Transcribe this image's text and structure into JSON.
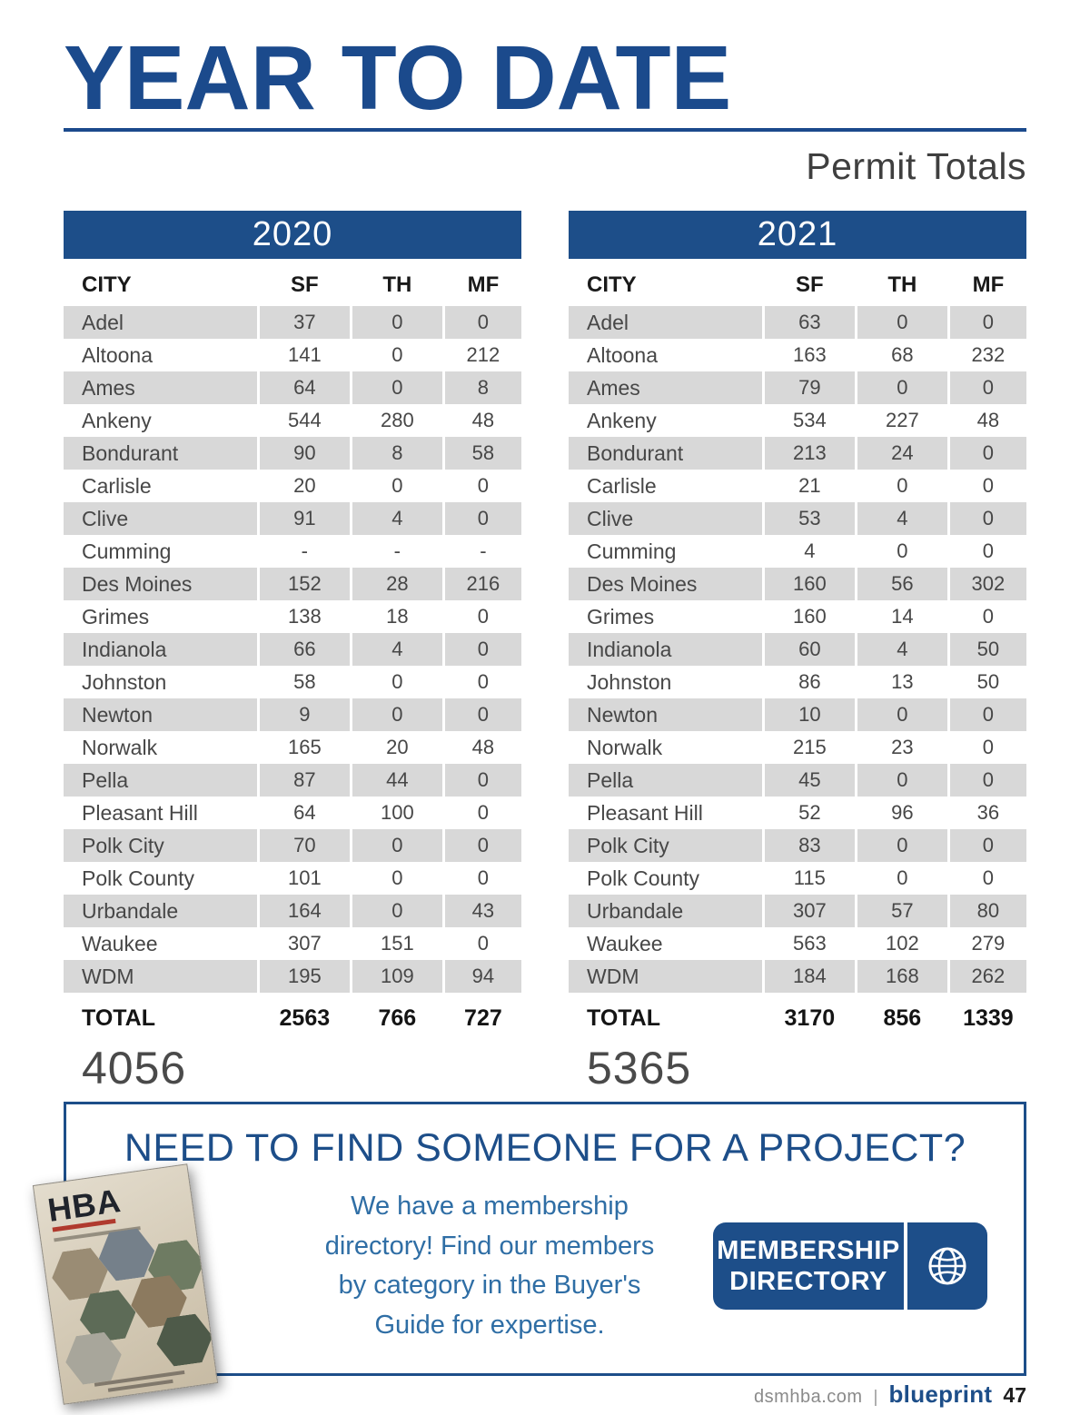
{
  "page": {
    "title": "YEAR TO DATE",
    "subtitle": "Permit Totals"
  },
  "tables": [
    {
      "year": "2020",
      "columns": [
        "CITY",
        "SF",
        "TH",
        "MF"
      ],
      "rows": [
        [
          "Adel",
          "37",
          "0",
          "0"
        ],
        [
          "Altoona",
          "141",
          "0",
          "212"
        ],
        [
          "Ames",
          "64",
          "0",
          "8"
        ],
        [
          "Ankeny",
          "544",
          "280",
          "48"
        ],
        [
          "Bondurant",
          "90",
          "8",
          "58"
        ],
        [
          "Carlisle",
          "20",
          "0",
          "0"
        ],
        [
          "Clive",
          "91",
          "4",
          "0"
        ],
        [
          "Cumming",
          "-",
          "-",
          "-"
        ],
        [
          "Des Moines",
          "152",
          "28",
          "216"
        ],
        [
          "Grimes",
          "138",
          "18",
          "0"
        ],
        [
          "Indianola",
          "66",
          "4",
          "0"
        ],
        [
          "Johnston",
          "58",
          "0",
          "0"
        ],
        [
          "Newton",
          "9",
          "0",
          "0"
        ],
        [
          "Norwalk",
          "165",
          "20",
          "48"
        ],
        [
          "Pella",
          "87",
          "44",
          "0"
        ],
        [
          "Pleasant Hill",
          "64",
          "100",
          "0"
        ],
        [
          "Polk City",
          "70",
          "0",
          "0"
        ],
        [
          "Polk County",
          "101",
          "0",
          "0"
        ],
        [
          "Urbandale",
          "164",
          "0",
          "43"
        ],
        [
          "Waukee",
          "307",
          "151",
          "0"
        ],
        [
          "WDM",
          "195",
          "109",
          "94"
        ]
      ],
      "total_label": "TOTAL",
      "totals": [
        "2563",
        "766",
        "727"
      ],
      "grand_total": "4056"
    },
    {
      "year": "2021",
      "columns": [
        "CITY",
        "SF",
        "TH",
        "MF"
      ],
      "rows": [
        [
          "Adel",
          "63",
          "0",
          "0"
        ],
        [
          "Altoona",
          "163",
          "68",
          "232"
        ],
        [
          "Ames",
          "79",
          "0",
          "0"
        ],
        [
          "Ankeny",
          "534",
          "227",
          "48"
        ],
        [
          "Bondurant",
          "213",
          "24",
          "0"
        ],
        [
          "Carlisle",
          "21",
          "0",
          "0"
        ],
        [
          "Clive",
          "53",
          "4",
          "0"
        ],
        [
          "Cumming",
          "4",
          "0",
          "0"
        ],
        [
          "Des Moines",
          "160",
          "56",
          "302"
        ],
        [
          "Grimes",
          "160",
          "14",
          "0"
        ],
        [
          "Indianola",
          "60",
          "4",
          "50"
        ],
        [
          "Johnston",
          "86",
          "13",
          "50"
        ],
        [
          "Newton",
          "10",
          "0",
          "0"
        ],
        [
          "Norwalk",
          "215",
          "23",
          "0"
        ],
        [
          "Pella",
          "45",
          "0",
          "0"
        ],
        [
          "Pleasant Hill",
          "52",
          "96",
          "36"
        ],
        [
          "Polk City",
          "83",
          "0",
          "0"
        ],
        [
          "Polk County",
          "115",
          "0",
          "0"
        ],
        [
          "Urbandale",
          "307",
          "57",
          "80"
        ],
        [
          "Waukee",
          "563",
          "102",
          "279"
        ],
        [
          "WDM",
          "184",
          "168",
          "262"
        ]
      ],
      "total_label": "TOTAL",
      "totals": [
        "3170",
        "856",
        "1339"
      ],
      "grand_total": "5365"
    }
  ],
  "promo": {
    "heading": "NEED TO FIND SOMEONE FOR A PROJECT?",
    "body_lines": [
      "We have a membership",
      "directory! Find our members",
      "by category in the Buyer's",
      "Guide for expertise."
    ],
    "button": {
      "line1": "MEMBERSHIP",
      "line2": "DIRECTORY",
      "icon": "globe-icon"
    },
    "cover_brand": "HBA"
  },
  "footer": {
    "site": "dsmhba.com",
    "separator": "|",
    "brand": "blueprint",
    "page_number": "47"
  },
  "colors": {
    "navy": "#1d4e89",
    "title_navy": "#1b4a8c",
    "stripe_gray": "#d8d8d8",
    "body_blue": "#2f6ea5"
  }
}
